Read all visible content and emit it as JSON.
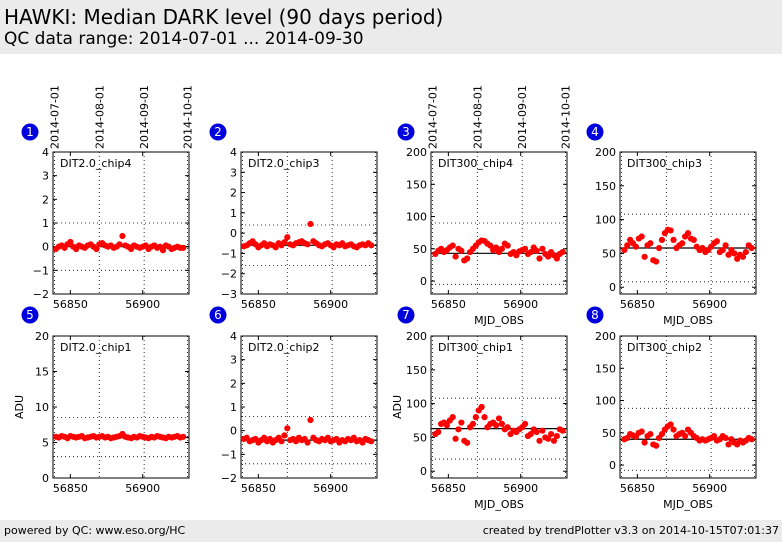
{
  "header": {
    "title": "HAWKI: Median DARK level (90 days period)",
    "subtitle": "QC data range: 2014-07-01 ... 2014-09-30"
  },
  "footer": {
    "left": "powered by QC: www.eso.org/HC",
    "right": "created by trendPlotter v3.3 on 2014-10-15T07:01:37"
  },
  "colors": {
    "points": "#ff0000",
    "badge": "#0000dd",
    "badge_text": "#ffffff"
  },
  "chart_data": [
    {
      "id": 1,
      "type": "scatter",
      "title": "DIT2.0_chip4",
      "xlabel": "",
      "ylabel": "",
      "xlim": [
        56838,
        56932
      ],
      "ylim": [
        -2,
        4
      ],
      "yticks": [
        "-2",
        "-1",
        "0",
        "1",
        "2",
        "3",
        "4"
      ],
      "xticks": [
        "56850",
        "56900"
      ],
      "date_ticks": [
        "2014-07-01",
        "2014-08-01",
        "2014-09-01",
        "2014-10-01"
      ],
      "ref_line": 0.0,
      "dotted_levels": [
        1.0,
        -1.0
      ],
      "series": [
        {
          "x": [
            56840,
            56842,
            56844,
            56846,
            56848,
            56850,
            56852,
            56854,
            56856,
            56858,
            56860,
            56862,
            56864,
            56866,
            56868,
            56870,
            56872,
            56874,
            56876,
            56878,
            56880,
            56882,
            56884,
            56886,
            56888,
            56890,
            56892,
            56894,
            56896,
            56898,
            56900,
            56902,
            56904,
            56906,
            56908,
            56910,
            56912,
            56914,
            56916,
            56918,
            56920,
            56922,
            56924,
            56926,
            56928
          ],
          "y": [
            -0.1,
            0.0,
            0.05,
            -0.05,
            0.1,
            0.2,
            0.0,
            -0.1,
            0.05,
            0.0,
            -0.05,
            0.05,
            0.1,
            0.0,
            -0.1,
            0.1,
            0.15,
            0.05,
            0.0,
            0.05,
            -0.05,
            0.0,
            0.1,
            0.45,
            0.05,
            0.0,
            -0.1,
            0.05,
            0.0,
            -0.05,
            0.0,
            0.05,
            -0.1,
            0.0,
            0.05,
            -0.05,
            0.0,
            -0.15,
            0.05,
            0.0,
            -0.1,
            -0.05,
            0.0,
            -0.05,
            -0.05
          ]
        }
      ]
    },
    {
      "id": 2,
      "type": "scatter",
      "title": "DIT2.0_chip3",
      "xlabel": "",
      "ylabel": "",
      "xlim": [
        56838,
        56932
      ],
      "ylim": [
        -3,
        4
      ],
      "yticks": [
        "-3",
        "-2",
        "-1",
        "0",
        "1",
        "2",
        "3",
        "4"
      ],
      "xticks": [
        "56850",
        "56900"
      ],
      "date_ticks": [],
      "ref_line": -0.6,
      "dotted_levels": [
        0.4,
        -1.6
      ],
      "series": [
        {
          "x": [
            56840,
            56842,
            56844,
            56846,
            56848,
            56850,
            56852,
            56854,
            56856,
            56858,
            56860,
            56862,
            56864,
            56866,
            56868,
            56870,
            56872,
            56874,
            56876,
            56878,
            56880,
            56882,
            56884,
            56886,
            56888,
            56890,
            56892,
            56894,
            56896,
            56898,
            56900,
            56902,
            56904,
            56906,
            56908,
            56910,
            56912,
            56914,
            56916,
            56918,
            56920,
            56922,
            56924,
            56926,
            56928
          ],
          "y": [
            -0.65,
            -0.6,
            -0.5,
            -0.4,
            -0.55,
            -0.7,
            -0.6,
            -0.5,
            -0.65,
            -0.55,
            -0.6,
            -0.7,
            -0.5,
            -0.6,
            -0.45,
            -0.2,
            -0.55,
            -0.6,
            -0.5,
            -0.45,
            -0.4,
            -0.5,
            -0.55,
            0.45,
            -0.4,
            -0.5,
            -0.6,
            -0.65,
            -0.55,
            -0.5,
            -0.6,
            -0.7,
            -0.55,
            -0.6,
            -0.5,
            -0.65,
            -0.6,
            -0.55,
            -0.65,
            -0.7,
            -0.6,
            -0.55,
            -0.6,
            -0.5,
            -0.6
          ]
        }
      ]
    },
    {
      "id": 3,
      "type": "scatter",
      "title": "DIT300_chip4",
      "xlabel": "MJD_OBS",
      "ylabel": "",
      "xlim": [
        56838,
        56932
      ],
      "ylim": [
        -20,
        200
      ],
      "yticks": [
        "0",
        "50",
        "100",
        "150",
        "200"
      ],
      "xticks": [
        "56850",
        "56900"
      ],
      "date_ticks": [
        "2014-07-01",
        "2014-08-01",
        "2014-09-01",
        "2014-10-01"
      ],
      "ref_line": 43,
      "dotted_levels": [
        90,
        -5
      ],
      "series": [
        {
          "x": [
            56841,
            56843,
            56845,
            56847,
            56849,
            56851,
            56853,
            56855,
            56857,
            56859,
            56861,
            56863,
            56865,
            56867,
            56869,
            56871,
            56873,
            56875,
            56877,
            56879,
            56881,
            56883,
            56885,
            56887,
            56889,
            56891,
            56893,
            56895,
            56897,
            56899,
            56901,
            56903,
            56905,
            56907,
            56909,
            56911,
            56913,
            56915,
            56917,
            56919,
            56921,
            56923,
            56925,
            56927,
            56929
          ],
          "y": [
            42,
            47,
            50,
            45,
            48,
            52,
            55,
            38,
            50,
            47,
            32,
            35,
            45,
            50,
            55,
            60,
            63,
            62,
            58,
            55,
            48,
            52,
            45,
            50,
            58,
            55,
            42,
            45,
            40,
            46,
            48,
            50,
            42,
            45,
            52,
            47,
            35,
            50,
            42,
            38,
            45,
            40,
            35,
            42,
            45
          ]
        }
      ]
    },
    {
      "id": 4,
      "type": "scatter",
      "title": "DIT300_chip3",
      "xlabel": "MJD_OBS",
      "ylabel": "",
      "xlim": [
        56838,
        56932
      ],
      "ylim": [
        -10,
        200
      ],
      "yticks": [
        "0",
        "50",
        "100",
        "150",
        "200"
      ],
      "xticks": [
        "56850",
        "56900"
      ],
      "date_ticks": [],
      "ref_line": 58,
      "dotted_levels": [
        108,
        8
      ],
      "series": [
        {
          "x": [
            56841,
            56843,
            56845,
            56847,
            56849,
            56851,
            56853,
            56855,
            56857,
            56859,
            56861,
            56863,
            56865,
            56867,
            56869,
            56871,
            56873,
            56875,
            56877,
            56879,
            56881,
            56883,
            56885,
            56887,
            56889,
            56891,
            56893,
            56895,
            56897,
            56899,
            56901,
            56903,
            56905,
            56907,
            56909,
            56911,
            56913,
            56915,
            56917,
            56919,
            56921,
            56923,
            56925,
            56927,
            56929
          ],
          "y": [
            55,
            62,
            70,
            65,
            60,
            72,
            75,
            45,
            62,
            65,
            40,
            38,
            58,
            70,
            80,
            85,
            84,
            70,
            58,
            62,
            65,
            75,
            80,
            72,
            70,
            60,
            55,
            58,
            52,
            55,
            60,
            65,
            68,
            52,
            55,
            62,
            48,
            55,
            50,
            42,
            48,
            45,
            52,
            62,
            58
          ]
        }
      ]
    },
    {
      "id": 5,
      "type": "scatter",
      "title": "DIT2.0_chip1",
      "xlabel": "",
      "ylabel": "ADU",
      "xlim": [
        56838,
        56932
      ],
      "ylim": [
        0,
        20
      ],
      "yticks": [
        "0",
        "5",
        "10",
        "15",
        "20"
      ],
      "xticks": [
        "56850",
        "56900"
      ],
      "date_ticks": [],
      "ref_line": 5.7,
      "dotted_levels": [
        8.5,
        3.0
      ],
      "series": [
        {
          "x": [
            56840,
            56842,
            56844,
            56846,
            56848,
            56850,
            56852,
            56854,
            56856,
            56858,
            56860,
            56862,
            56864,
            56866,
            56868,
            56870,
            56872,
            56874,
            56876,
            56878,
            56880,
            56882,
            56884,
            56886,
            56888,
            56890,
            56892,
            56894,
            56896,
            56898,
            56900,
            56902,
            56904,
            56906,
            56908,
            56910,
            56912,
            56914,
            56916,
            56918,
            56920,
            56922,
            56924,
            56926,
            56928
          ],
          "y": [
            5.8,
            5.7,
            5.9,
            5.8,
            5.6,
            5.9,
            5.8,
            5.7,
            5.8,
            5.9,
            5.6,
            5.7,
            5.8,
            5.9,
            5.7,
            5.8,
            5.9,
            5.7,
            5.8,
            5.6,
            5.7,
            5.8,
            5.9,
            6.2,
            5.8,
            5.7,
            5.6,
            5.8,
            5.7,
            5.9,
            5.8,
            5.7,
            5.6,
            5.8,
            5.7,
            5.9,
            5.8,
            5.7,
            5.6,
            5.8,
            5.7,
            5.8,
            5.9,
            5.7,
            5.8
          ]
        }
      ]
    },
    {
      "id": 6,
      "type": "scatter",
      "title": "DIT2.0_chip2",
      "xlabel": "",
      "ylabel": "",
      "xlim": [
        56838,
        56932
      ],
      "ylim": [
        -2,
        4
      ],
      "yticks": [
        "-2",
        "-1",
        "0",
        "1",
        "2",
        "3",
        "4"
      ],
      "xticks": [
        "56850",
        "56900"
      ],
      "date_ticks": [],
      "ref_line": -0.4,
      "dotted_levels": [
        0.6,
        -1.4
      ],
      "series": [
        {
          "x": [
            56840,
            56842,
            56844,
            56846,
            56848,
            56850,
            56852,
            56854,
            56856,
            56858,
            56860,
            56862,
            56864,
            56866,
            56868,
            56870,
            56872,
            56874,
            56876,
            56878,
            56880,
            56882,
            56884,
            56886,
            56888,
            56890,
            56892,
            56894,
            56896,
            56898,
            56900,
            56902,
            56904,
            56906,
            56908,
            56910,
            56912,
            56914,
            56916,
            56918,
            56920,
            56922,
            56924,
            56926,
            56928
          ],
          "y": [
            -0.35,
            -0.3,
            -0.45,
            -0.4,
            -0.35,
            -0.5,
            -0.4,
            -0.3,
            -0.45,
            -0.35,
            -0.5,
            -0.4,
            -0.3,
            -0.45,
            -0.2,
            0.1,
            -0.4,
            -0.35,
            -0.45,
            -0.3,
            -0.4,
            -0.35,
            -0.5,
            0.45,
            -0.3,
            -0.4,
            -0.45,
            -0.35,
            -0.4,
            -0.3,
            -0.45,
            -0.4,
            -0.35,
            -0.5,
            -0.4,
            -0.45,
            -0.35,
            -0.4,
            -0.3,
            -0.45,
            -0.4,
            -0.5,
            -0.35,
            -0.4,
            -0.45
          ]
        }
      ]
    },
    {
      "id": 7,
      "type": "scatter",
      "title": "DIT300_chip1",
      "xlabel": "MJD_OBS",
      "ylabel": "ADU",
      "xlim": [
        56838,
        56932
      ],
      "ylim": [
        -10,
        200
      ],
      "yticks": [
        "0",
        "50",
        "100",
        "150",
        "200"
      ],
      "xticks": [
        "56850",
        "56900"
      ],
      "date_ticks": [],
      "ref_line": 63,
      "dotted_levels": [
        108,
        18
      ],
      "series": [
        {
          "x": [
            56841,
            56843,
            56845,
            56847,
            56849,
            56851,
            56853,
            56855,
            56857,
            56859,
            56861,
            56863,
            56865,
            56867,
            56869,
            56871,
            56873,
            56875,
            56877,
            56879,
            56881,
            56883,
            56885,
            56887,
            56889,
            56891,
            56893,
            56895,
            56897,
            56899,
            56901,
            56903,
            56905,
            56907,
            56909,
            56911,
            56913,
            56915,
            56917,
            56919,
            56921,
            56923,
            56925,
            56927,
            56929
          ],
          "y": [
            55,
            58,
            70,
            72,
            68,
            75,
            80,
            48,
            62,
            72,
            45,
            42,
            65,
            70,
            80,
            90,
            95,
            80,
            65,
            70,
            72,
            68,
            78,
            70,
            62,
            65,
            55,
            60,
            58,
            62,
            65,
            70,
            52,
            55,
            62,
            58,
            45,
            60,
            50,
            48,
            55,
            45,
            52,
            62,
            60
          ]
        }
      ]
    },
    {
      "id": 8,
      "type": "scatter",
      "title": "DIT300_chip2",
      "xlabel": "MJD_OBS",
      "ylabel": "",
      "xlim": [
        56838,
        56932
      ],
      "ylim": [
        -20,
        200
      ],
      "yticks": [
        "0",
        "50",
        "100",
        "150",
        "200"
      ],
      "xticks": [
        "56850",
        "56900"
      ],
      "date_ticks": [],
      "ref_line": 40,
      "dotted_levels": [
        88,
        -8
      ],
      "series": [
        {
          "x": [
            56841,
            56843,
            56845,
            56847,
            56849,
            56851,
            56853,
            56855,
            56857,
            56859,
            56861,
            56863,
            56865,
            56867,
            56869,
            56871,
            56873,
            56875,
            56877,
            56879,
            56881,
            56883,
            56885,
            56887,
            56889,
            56891,
            56893,
            56895,
            56897,
            56899,
            56901,
            56903,
            56905,
            56907,
            56909,
            56911,
            56913,
            56915,
            56917,
            56919,
            56921,
            56923,
            56925,
            56927,
            56929
          ],
          "y": [
            40,
            42,
            48,
            46,
            44,
            50,
            52,
            35,
            45,
            48,
            32,
            30,
            42,
            48,
            55,
            60,
            63,
            55,
            45,
            48,
            50,
            45,
            55,
            50,
            45,
            42,
            38,
            40,
            38,
            40,
            42,
            45,
            38,
            40,
            45,
            42,
            32,
            40,
            35,
            32,
            38,
            35,
            38,
            42,
            40
          ]
        }
      ]
    }
  ]
}
